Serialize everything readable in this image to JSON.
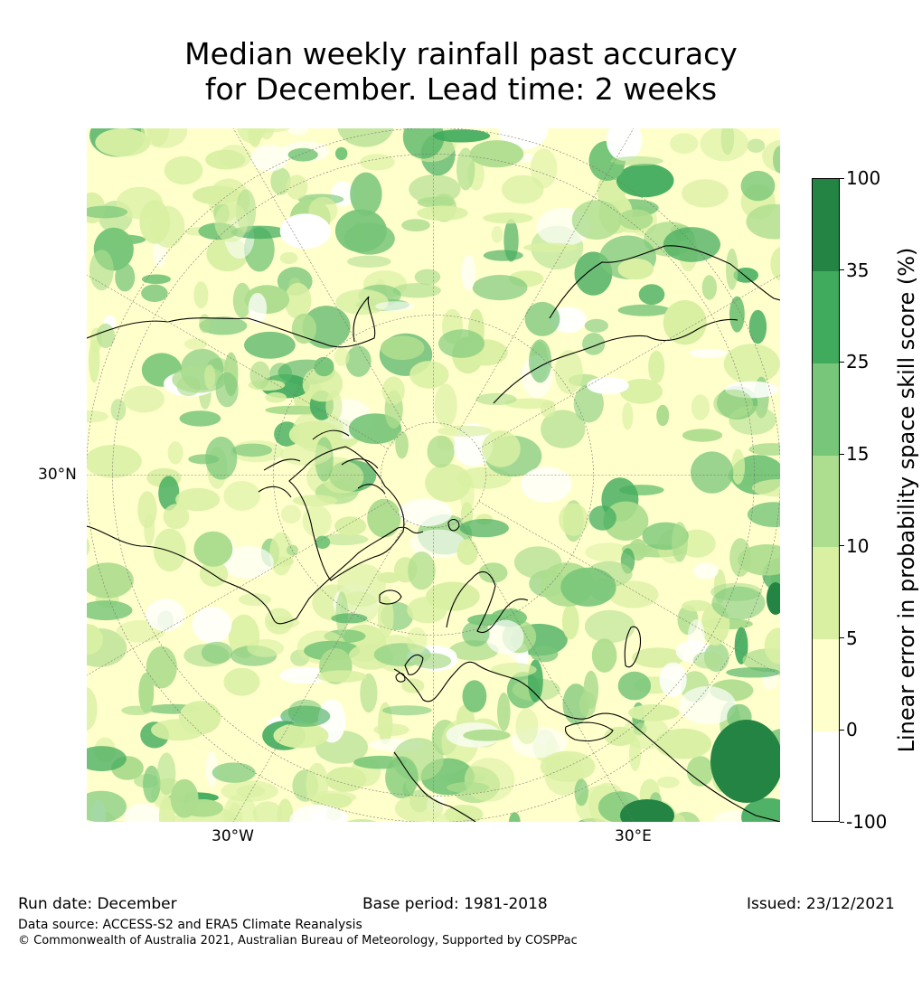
{
  "title": {
    "line1": "Median weekly rainfall past accuracy",
    "line2": "for December. Lead time: 2 weeks"
  },
  "map": {
    "projection": "north polar stereographic",
    "labels": {
      "lat_30n": "30°N",
      "lon_30w": "30°W",
      "lon_30e": "30°E"
    }
  },
  "colorbar": {
    "title": "Linear error in probability space skill score (%)",
    "levels": [
      "-100",
      "0",
      "5",
      "10",
      "15",
      "25",
      "35",
      "100"
    ],
    "colors": [
      "#ffffff",
      "#ffffcc",
      "#d9f0a3",
      "#addd8e",
      "#78c679",
      "#41ab5d",
      "#238443"
    ]
  },
  "footer": {
    "run_date": "Run date: December",
    "base_period": "Base period: 1981-2018",
    "issued": "Issued: 23/12/2021",
    "data_source": "Data source: ACCESS-S2 and ERA5 Climate Reanalysis",
    "copyright": "© Commonwealth of Australia 2021, Australian Bureau of Meteorology, Supported by COSPPac"
  }
}
